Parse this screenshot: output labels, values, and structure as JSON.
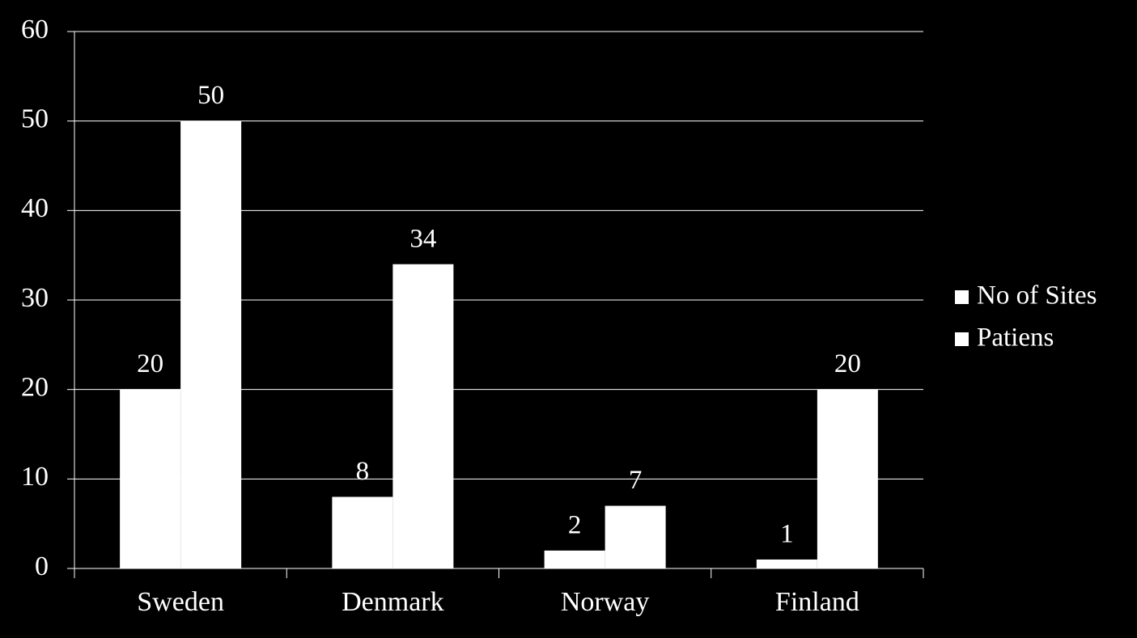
{
  "chart_data": {
    "type": "bar",
    "categories": [
      "Sweden",
      "Denmark",
      "Norway",
      "Finland"
    ],
    "series": [
      {
        "name": "No of Sites",
        "color": "#ffffff",
        "values": [
          20,
          8,
          2,
          1
        ]
      },
      {
        "name": "Patiens",
        "color": "#ffffff",
        "values": [
          50,
          34,
          7,
          20
        ]
      }
    ],
    "ylim": [
      0,
      60
    ],
    "yticks": [
      0,
      10,
      20,
      30,
      40,
      50,
      60
    ],
    "grid": true,
    "legend": "right",
    "data_labels": true
  }
}
